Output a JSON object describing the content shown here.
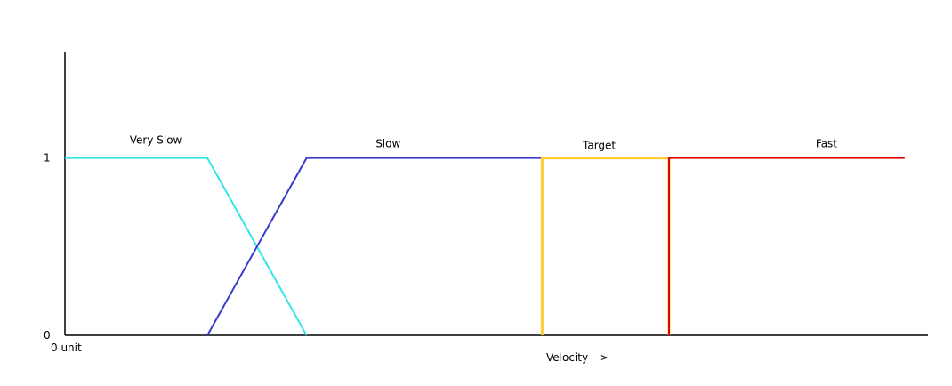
{
  "chart_data": {
    "type": "line",
    "xlabel": "Velocity -->",
    "x_origin_label": "0 unit",
    "ylabel": "",
    "y_ticks": [
      0,
      1
    ],
    "ylim": [
      0,
      1.6
    ],
    "xlim": [
      0,
      1000
    ],
    "grid": false,
    "series": [
      {
        "name": "Very Slow",
        "color": "#33e5e5",
        "points": [
          [
            0,
            1
          ],
          [
            165,
            1
          ],
          [
            280,
            0
          ]
        ]
      },
      {
        "name": "Slow",
        "color": "#3a3acc",
        "points": [
          [
            165,
            0
          ],
          [
            280,
            1
          ],
          [
            553,
            1
          ]
        ]
      },
      {
        "name": "Target",
        "color": "#ffcc33",
        "points": [
          [
            553,
            0
          ],
          [
            553,
            1
          ],
          [
            700,
            1
          ],
          [
            700,
            0
          ]
        ]
      },
      {
        "name": "Fast",
        "color": "#e60000",
        "points": [
          [
            700,
            0
          ],
          [
            700,
            1
          ],
          [
            973,
            1
          ]
        ]
      }
    ],
    "label_positions": [
      [
        75,
        1.08
      ],
      [
        360,
        1.06
      ],
      [
        600,
        1.05
      ],
      [
        870,
        1.06
      ]
    ]
  }
}
